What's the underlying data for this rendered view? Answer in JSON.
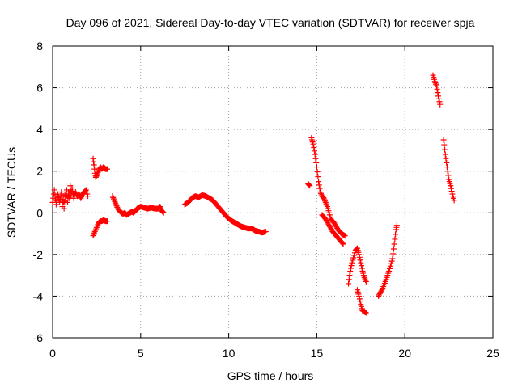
{
  "chart_data": {
    "type": "scatter",
    "title": "Day 096 of 2021, Sidereal Day-to-day VTEC variation (SDTVAR) for receiver spja",
    "xlabel": "GPS time / hours",
    "ylabel": "SDTVAR / TECUs",
    "xlim": [
      0,
      25
    ],
    "ylim": [
      -6,
      8
    ],
    "xticks": [
      0,
      5,
      10,
      15,
      20,
      25
    ],
    "yticks": [
      -6,
      -4,
      -2,
      0,
      2,
      4,
      6,
      8
    ],
    "grid": true,
    "marker": "+",
    "color": "#ff0000",
    "segments": [
      [
        [
          0.0,
          0.5
        ],
        [
          0.1,
          1.1
        ],
        [
          0.2,
          0.4
        ],
        [
          0.3,
          0.9
        ],
        [
          0.4,
          0.5
        ],
        [
          0.5,
          1.0
        ],
        [
          0.55,
          0.3
        ],
        [
          0.6,
          0.8
        ],
        [
          0.65,
          0.2
        ],
        [
          0.7,
          0.9
        ],
        [
          0.75,
          0.6
        ],
        [
          0.8,
          1.1
        ],
        [
          0.85,
          0.5
        ],
        [
          0.9,
          1.0
        ],
        [
          0.95,
          0.7
        ],
        [
          1.0,
          1.3
        ],
        [
          1.05,
          0.8
        ],
        [
          1.1,
          1.2
        ],
        [
          1.2,
          0.7
        ],
        [
          1.3,
          1.0
        ],
        [
          1.4,
          0.8
        ],
        [
          1.5,
          0.9
        ],
        [
          1.6,
          0.7
        ],
        [
          1.7,
          0.9
        ],
        [
          1.8,
          1.0
        ],
        [
          1.9,
          1.1
        ],
        [
          2.0,
          0.8
        ]
      ],
      [
        [
          2.3,
          2.6
        ],
        [
          2.35,
          2.3
        ],
        [
          2.4,
          1.9
        ],
        [
          2.45,
          1.7
        ],
        [
          2.5,
          1.8
        ],
        [
          2.6,
          2.0
        ],
        [
          2.7,
          2.2
        ],
        [
          2.8,
          2.1
        ],
        [
          2.9,
          2.2
        ],
        [
          3.0,
          2.1
        ],
        [
          3.1,
          2.1
        ]
      ],
      [
        [
          2.3,
          -1.1
        ],
        [
          2.4,
          -0.9
        ],
        [
          2.5,
          -0.7
        ],
        [
          2.6,
          -0.5
        ],
        [
          2.7,
          -0.4
        ],
        [
          2.8,
          -0.4
        ],
        [
          2.9,
          -0.35
        ],
        [
          3.0,
          -0.4
        ],
        [
          3.1,
          -0.4
        ]
      ],
      [
        [
          3.4,
          0.8
        ],
        [
          3.5,
          0.6
        ],
        [
          3.6,
          0.4
        ],
        [
          3.7,
          0.2
        ],
        [
          3.8,
          0.1
        ],
        [
          3.9,
          0.0
        ],
        [
          4.0,
          -0.05
        ],
        [
          4.1,
          0.0
        ],
        [
          4.2,
          -0.1
        ],
        [
          4.3,
          -0.05
        ],
        [
          4.4,
          0.0
        ],
        [
          4.5,
          0.05
        ],
        [
          4.6,
          0.0
        ],
        [
          4.7,
          0.1
        ],
        [
          4.8,
          0.2
        ],
        [
          4.9,
          0.25
        ],
        [
          5.0,
          0.3
        ],
        [
          5.2,
          0.25
        ],
        [
          5.4,
          0.2
        ],
        [
          5.6,
          0.25
        ],
        [
          5.8,
          0.2
        ],
        [
          6.0,
          0.2
        ],
        [
          6.1,
          0.3
        ],
        [
          6.2,
          0.1
        ],
        [
          6.3,
          0.0
        ]
      ],
      [
        [
          7.5,
          0.4
        ],
        [
          7.7,
          0.5
        ],
        [
          7.9,
          0.7
        ],
        [
          8.1,
          0.8
        ],
        [
          8.3,
          0.75
        ],
        [
          8.5,
          0.85
        ],
        [
          8.7,
          0.8
        ],
        [
          8.9,
          0.7
        ],
        [
          9.1,
          0.6
        ],
        [
          9.3,
          0.4
        ],
        [
          9.5,
          0.2
        ],
        [
          9.7,
          0.0
        ],
        [
          9.9,
          -0.2
        ],
        [
          10.1,
          -0.35
        ],
        [
          10.3,
          -0.45
        ],
        [
          10.5,
          -0.55
        ],
        [
          10.7,
          -0.65
        ],
        [
          10.9,
          -0.7
        ],
        [
          11.1,
          -0.75
        ],
        [
          11.3,
          -0.75
        ],
        [
          11.5,
          -0.85
        ],
        [
          11.7,
          -0.9
        ],
        [
          11.9,
          -0.95
        ],
        [
          12.1,
          -0.9
        ]
      ],
      [
        [
          14.5,
          1.4
        ],
        [
          14.6,
          1.3
        ]
      ],
      [
        [
          14.7,
          3.6
        ],
        [
          14.8,
          3.3
        ],
        [
          14.9,
          2.8
        ],
        [
          15.0,
          2.2
        ],
        [
          15.1,
          1.5
        ],
        [
          15.2,
          1.0
        ],
        [
          15.3,
          0.8
        ],
        [
          15.4,
          0.7
        ],
        [
          15.5,
          0.5
        ],
        [
          15.6,
          0.3
        ],
        [
          15.7,
          0.0
        ],
        [
          15.8,
          -0.3
        ],
        [
          16.0,
          -0.5
        ],
        [
          16.2,
          -0.8
        ],
        [
          16.4,
          -1.0
        ],
        [
          16.6,
          -1.1
        ]
      ],
      [
        [
          15.3,
          -0.1
        ],
        [
          15.5,
          -0.3
        ],
        [
          15.7,
          -0.6
        ],
        [
          15.9,
          -0.9
        ],
        [
          16.1,
          -1.1
        ],
        [
          16.3,
          -1.3
        ],
        [
          16.5,
          -1.5
        ]
      ],
      [
        [
          16.8,
          -3.4
        ],
        [
          16.9,
          -2.8
        ],
        [
          17.0,
          -2.4
        ],
        [
          17.2,
          -1.8
        ],
        [
          17.3,
          -1.7
        ],
        [
          17.4,
          -2.0
        ],
        [
          17.5,
          -2.4
        ],
        [
          17.6,
          -2.8
        ],
        [
          17.7,
          -3.1
        ],
        [
          17.8,
          -3.3
        ]
      ],
      [
        [
          17.3,
          -3.7
        ],
        [
          17.4,
          -4.0
        ],
        [
          17.5,
          -4.4
        ],
        [
          17.6,
          -4.7
        ],
        [
          17.8,
          -4.8
        ]
      ],
      [
        [
          18.5,
          -4.0
        ],
        [
          18.7,
          -3.7
        ],
        [
          18.9,
          -3.3
        ],
        [
          19.1,
          -2.8
        ],
        [
          19.3,
          -2.2
        ],
        [
          19.4,
          -1.5
        ],
        [
          19.5,
          -0.8
        ],
        [
          19.55,
          -0.6
        ]
      ],
      [
        [
          21.6,
          6.6
        ],
        [
          21.7,
          6.3
        ],
        [
          21.8,
          6.1
        ],
        [
          21.9,
          5.6
        ],
        [
          22.0,
          5.2
        ]
      ],
      [
        [
          22.2,
          3.5
        ],
        [
          22.3,
          2.8
        ],
        [
          22.4,
          2.2
        ],
        [
          22.5,
          1.6
        ],
        [
          22.6,
          1.3
        ],
        [
          22.7,
          0.9
        ],
        [
          22.8,
          0.6
        ]
      ]
    ]
  }
}
